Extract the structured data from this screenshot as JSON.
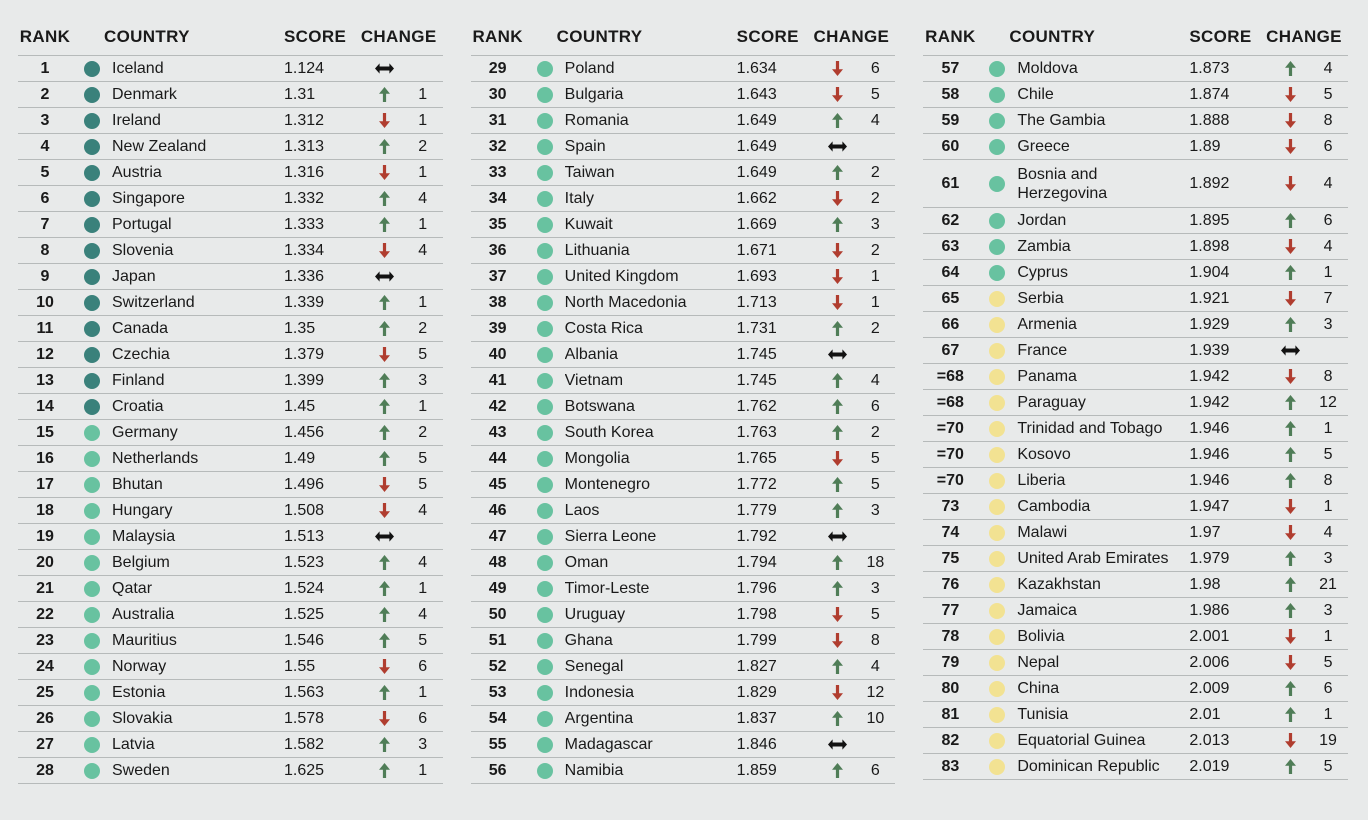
{
  "chart_data": {
    "type": "table",
    "title": "",
    "headers": {
      "rank": "RANK",
      "country": "COUNTRY",
      "score": "SCORE",
      "change": "CHANGE"
    },
    "colors": {
      "background": "#e8eaea",
      "text": "#1a1a1a",
      "separator": "#b6baba",
      "dot_dark": "#3a817b",
      "dot_mid": "#68c2a0",
      "dot_yellow": "#f2e292",
      "arrow_up": "#4f7d57",
      "arrow_down": "#b03d2f",
      "arrow_same": "#121212"
    },
    "tables": [
      {
        "rows": [
          {
            "rank": "1",
            "country": "Iceland",
            "score": "1.124",
            "tier": "dark",
            "dir": "same",
            "delta": ""
          },
          {
            "rank": "2",
            "country": "Denmark",
            "score": "1.31",
            "tier": "dark",
            "dir": "up",
            "delta": "1"
          },
          {
            "rank": "3",
            "country": "Ireland",
            "score": "1.312",
            "tier": "dark",
            "dir": "down",
            "delta": "1"
          },
          {
            "rank": "4",
            "country": "New Zealand",
            "score": "1.313",
            "tier": "dark",
            "dir": "up",
            "delta": "2"
          },
          {
            "rank": "5",
            "country": "Austria",
            "score": "1.316",
            "tier": "dark",
            "dir": "down",
            "delta": "1"
          },
          {
            "rank": "6",
            "country": "Singapore",
            "score": "1.332",
            "tier": "dark",
            "dir": "up",
            "delta": "4"
          },
          {
            "rank": "7",
            "country": "Portugal",
            "score": "1.333",
            "tier": "dark",
            "dir": "up",
            "delta": "1"
          },
          {
            "rank": "8",
            "country": "Slovenia",
            "score": "1.334",
            "tier": "dark",
            "dir": "down",
            "delta": "4"
          },
          {
            "rank": "9",
            "country": "Japan",
            "score": "1.336",
            "tier": "dark",
            "dir": "same",
            "delta": ""
          },
          {
            "rank": "10",
            "country": "Switzerland",
            "score": "1.339",
            "tier": "dark",
            "dir": "up",
            "delta": "1"
          },
          {
            "rank": "11",
            "country": "Canada",
            "score": "1.35",
            "tier": "dark",
            "dir": "up",
            "delta": "2"
          },
          {
            "rank": "12",
            "country": "Czechia",
            "score": "1.379",
            "tier": "dark",
            "dir": "down",
            "delta": "5"
          },
          {
            "rank": "13",
            "country": "Finland",
            "score": "1.399",
            "tier": "dark",
            "dir": "up",
            "delta": "3"
          },
          {
            "rank": "14",
            "country": "Croatia",
            "score": "1.45",
            "tier": "dark",
            "dir": "up",
            "delta": "1"
          },
          {
            "rank": "15",
            "country": "Germany",
            "score": "1.456",
            "tier": "mid",
            "dir": "up",
            "delta": "2"
          },
          {
            "rank": "16",
            "country": "Netherlands",
            "score": "1.49",
            "tier": "mid",
            "dir": "up",
            "delta": "5"
          },
          {
            "rank": "17",
            "country": "Bhutan",
            "score": "1.496",
            "tier": "mid",
            "dir": "down",
            "delta": "5"
          },
          {
            "rank": "18",
            "country": "Hungary",
            "score": "1.508",
            "tier": "mid",
            "dir": "down",
            "delta": "4"
          },
          {
            "rank": "19",
            "country": "Malaysia",
            "score": "1.513",
            "tier": "mid",
            "dir": "same",
            "delta": ""
          },
          {
            "rank": "20",
            "country": "Belgium",
            "score": "1.523",
            "tier": "mid",
            "dir": "up",
            "delta": "4"
          },
          {
            "rank": "21",
            "country": "Qatar",
            "score": "1.524",
            "tier": "mid",
            "dir": "up",
            "delta": "1"
          },
          {
            "rank": "22",
            "country": "Australia",
            "score": "1.525",
            "tier": "mid",
            "dir": "up",
            "delta": "4"
          },
          {
            "rank": "23",
            "country": "Mauritius",
            "score": "1.546",
            "tier": "mid",
            "dir": "up",
            "delta": "5"
          },
          {
            "rank": "24",
            "country": "Norway",
            "score": "1.55",
            "tier": "mid",
            "dir": "down",
            "delta": "6"
          },
          {
            "rank": "25",
            "country": "Estonia",
            "score": "1.563",
            "tier": "mid",
            "dir": "up",
            "delta": "1"
          },
          {
            "rank": "26",
            "country": "Slovakia",
            "score": "1.578",
            "tier": "mid",
            "dir": "down",
            "delta": "6"
          },
          {
            "rank": "27",
            "country": "Latvia",
            "score": "1.582",
            "tier": "mid",
            "dir": "up",
            "delta": "3"
          },
          {
            "rank": "28",
            "country": "Sweden",
            "score": "1.625",
            "tier": "mid",
            "dir": "up",
            "delta": "1"
          }
        ]
      },
      {
        "rows": [
          {
            "rank": "29",
            "country": "Poland",
            "score": "1.634",
            "tier": "mid",
            "dir": "down",
            "delta": "6"
          },
          {
            "rank": "30",
            "country": "Bulgaria",
            "score": "1.643",
            "tier": "mid",
            "dir": "down",
            "delta": "5"
          },
          {
            "rank": "31",
            "country": "Romania",
            "score": "1.649",
            "tier": "mid",
            "dir": "up",
            "delta": "4"
          },
          {
            "rank": "32",
            "country": "Spain",
            "score": "1.649",
            "tier": "mid",
            "dir": "same",
            "delta": ""
          },
          {
            "rank": "33",
            "country": "Taiwan",
            "score": "1.649",
            "tier": "mid",
            "dir": "up",
            "delta": "2"
          },
          {
            "rank": "34",
            "country": "Italy",
            "score": "1.662",
            "tier": "mid",
            "dir": "down",
            "delta": "2"
          },
          {
            "rank": "35",
            "country": "Kuwait",
            "score": "1.669",
            "tier": "mid",
            "dir": "up",
            "delta": "3"
          },
          {
            "rank": "36",
            "country": "Lithuania",
            "score": "1.671",
            "tier": "mid",
            "dir": "down",
            "delta": "2"
          },
          {
            "rank": "37",
            "country": "United Kingdom",
            "score": "1.693",
            "tier": "mid",
            "dir": "down",
            "delta": "1"
          },
          {
            "rank": "38",
            "country": "North Macedonia",
            "score": "1.713",
            "tier": "mid",
            "dir": "down",
            "delta": "1"
          },
          {
            "rank": "39",
            "country": "Costa Rica",
            "score": "1.731",
            "tier": "mid",
            "dir": "up",
            "delta": "2"
          },
          {
            "rank": "40",
            "country": "Albania",
            "score": "1.745",
            "tier": "mid",
            "dir": "same",
            "delta": ""
          },
          {
            "rank": "41",
            "country": "Vietnam",
            "score": "1.745",
            "tier": "mid",
            "dir": "up",
            "delta": "4"
          },
          {
            "rank": "42",
            "country": "Botswana",
            "score": "1.762",
            "tier": "mid",
            "dir": "up",
            "delta": "6"
          },
          {
            "rank": "43",
            "country": "South Korea",
            "score": "1.763",
            "tier": "mid",
            "dir": "up",
            "delta": "2"
          },
          {
            "rank": "44",
            "country": "Mongolia",
            "score": "1.765",
            "tier": "mid",
            "dir": "down",
            "delta": "5"
          },
          {
            "rank": "45",
            "country": "Montenegro",
            "score": "1.772",
            "tier": "mid",
            "dir": "up",
            "delta": "5"
          },
          {
            "rank": "46",
            "country": "Laos",
            "score": "1.779",
            "tier": "mid",
            "dir": "up",
            "delta": "3"
          },
          {
            "rank": "47",
            "country": "Sierra Leone",
            "score": "1.792",
            "tier": "mid",
            "dir": "same",
            "delta": ""
          },
          {
            "rank": "48",
            "country": "Oman",
            "score": "1.794",
            "tier": "mid",
            "dir": "up",
            "delta": "18"
          },
          {
            "rank": "49",
            "country": "Timor-Leste",
            "score": "1.796",
            "tier": "mid",
            "dir": "up",
            "delta": "3"
          },
          {
            "rank": "50",
            "country": "Uruguay",
            "score": "1.798",
            "tier": "mid",
            "dir": "down",
            "delta": "5"
          },
          {
            "rank": "51",
            "country": "Ghana",
            "score": "1.799",
            "tier": "mid",
            "dir": "down",
            "delta": "8"
          },
          {
            "rank": "52",
            "country": "Senegal",
            "score": "1.827",
            "tier": "mid",
            "dir": "up",
            "delta": "4"
          },
          {
            "rank": "53",
            "country": "Indonesia",
            "score": "1.829",
            "tier": "mid",
            "dir": "down",
            "delta": "12"
          },
          {
            "rank": "54",
            "country": "Argentina",
            "score": "1.837",
            "tier": "mid",
            "dir": "up",
            "delta": "10"
          },
          {
            "rank": "55",
            "country": "Madagascar",
            "score": "1.846",
            "tier": "mid",
            "dir": "same",
            "delta": ""
          },
          {
            "rank": "56",
            "country": "Namibia",
            "score": "1.859",
            "tier": "mid",
            "dir": "up",
            "delta": "6"
          }
        ]
      },
      {
        "rows": [
          {
            "rank": "57",
            "country": "Moldova",
            "score": "1.873",
            "tier": "mid",
            "dir": "up",
            "delta": "4"
          },
          {
            "rank": "58",
            "country": "Chile",
            "score": "1.874",
            "tier": "mid",
            "dir": "down",
            "delta": "5"
          },
          {
            "rank": "59",
            "country": "The Gambia",
            "score": "1.888",
            "tier": "mid",
            "dir": "down",
            "delta": "8"
          },
          {
            "rank": "60",
            "country": "Greece",
            "score": "1.89",
            "tier": "mid",
            "dir": "down",
            "delta": "6"
          },
          {
            "rank": "61",
            "country": "Bosnia and Herzegovina",
            "score": "1.892",
            "tier": "mid",
            "dir": "down",
            "delta": "4"
          },
          {
            "rank": "62",
            "country": "Jordan",
            "score": "1.895",
            "tier": "mid",
            "dir": "up",
            "delta": "6"
          },
          {
            "rank": "63",
            "country": "Zambia",
            "score": "1.898",
            "tier": "mid",
            "dir": "down",
            "delta": "4"
          },
          {
            "rank": "64",
            "country": "Cyprus",
            "score": "1.904",
            "tier": "mid",
            "dir": "up",
            "delta": "1"
          },
          {
            "rank": "65",
            "country": "Serbia",
            "score": "1.921",
            "tier": "yellow",
            "dir": "down",
            "delta": "7"
          },
          {
            "rank": "66",
            "country": "Armenia",
            "score": "1.929",
            "tier": "yellow",
            "dir": "up",
            "delta": "3"
          },
          {
            "rank": "67",
            "country": "France",
            "score": "1.939",
            "tier": "yellow",
            "dir": "same",
            "delta": ""
          },
          {
            "rank": "=68",
            "country": "Panama",
            "score": "1.942",
            "tier": "yellow",
            "dir": "down",
            "delta": "8"
          },
          {
            "rank": "=68",
            "country": "Paraguay",
            "score": "1.942",
            "tier": "yellow",
            "dir": "up",
            "delta": "12"
          },
          {
            "rank": "=70",
            "country": "Trinidad and Tobago",
            "score": "1.946",
            "tier": "yellow",
            "dir": "up",
            "delta": "1"
          },
          {
            "rank": "=70",
            "country": "Kosovo",
            "score": "1.946",
            "tier": "yellow",
            "dir": "up",
            "delta": "5"
          },
          {
            "rank": "=70",
            "country": "Liberia",
            "score": "1.946",
            "tier": "yellow",
            "dir": "up",
            "delta": "8"
          },
          {
            "rank": "73",
            "country": "Cambodia",
            "score": "1.947",
            "tier": "yellow",
            "dir": "down",
            "delta": "1"
          },
          {
            "rank": "74",
            "country": "Malawi",
            "score": "1.97",
            "tier": "yellow",
            "dir": "down",
            "delta": "4"
          },
          {
            "rank": "75",
            "country": "United Arab Emirates",
            "score": "1.979",
            "tier": "yellow",
            "dir": "up",
            "delta": "3"
          },
          {
            "rank": "76",
            "country": "Kazakhstan",
            "score": "1.98",
            "tier": "yellow",
            "dir": "up",
            "delta": "21"
          },
          {
            "rank": "77",
            "country": "Jamaica",
            "score": "1.986",
            "tier": "yellow",
            "dir": "up",
            "delta": "3"
          },
          {
            "rank": "78",
            "country": "Bolivia",
            "score": "2.001",
            "tier": "yellow",
            "dir": "down",
            "delta": "1"
          },
          {
            "rank": "79",
            "country": "Nepal",
            "score": "2.006",
            "tier": "yellow",
            "dir": "down",
            "delta": "5"
          },
          {
            "rank": "80",
            "country": "China",
            "score": "2.009",
            "tier": "yellow",
            "dir": "up",
            "delta": "6"
          },
          {
            "rank": "81",
            "country": "Tunisia",
            "score": "2.01",
            "tier": "yellow",
            "dir": "up",
            "delta": "1"
          },
          {
            "rank": "82",
            "country": "Equatorial Guinea",
            "score": "2.013",
            "tier": "yellow",
            "dir": "down",
            "delta": "19"
          },
          {
            "rank": "83",
            "country": "Dominican Republic",
            "score": "2.019",
            "tier": "yellow",
            "dir": "up",
            "delta": "5"
          }
        ]
      }
    ]
  }
}
